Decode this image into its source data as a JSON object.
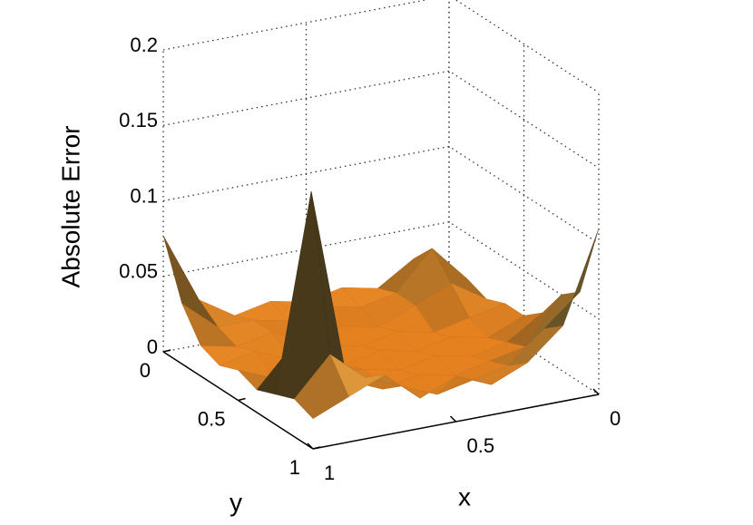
{
  "chart_data": {
    "type": "surface",
    "zlabel": "Absolute Error",
    "xlabel": "x",
    "ylabel": "y",
    "x": [
      0,
      0.125,
      0.25,
      0.375,
      0.5,
      0.625,
      0.75,
      0.875,
      1
    ],
    "y": [
      0,
      0.125,
      0.25,
      0.375,
      0.5,
      0.625,
      0.75,
      0.875,
      1
    ],
    "z": [
      [
        0.02,
        0.03,
        0.015,
        0.02,
        0.015,
        0.02,
        0.015,
        0.03,
        0.077
      ],
      [
        0.02,
        0.045,
        0.02,
        0.015,
        0.02,
        0.015,
        0.02,
        0.02,
        0.04
      ],
      [
        0.015,
        0.03,
        0.02,
        0.01,
        0.015,
        0.01,
        0.02,
        0.015,
        0.02
      ],
      [
        0.02,
        0.015,
        0.01,
        0.015,
        0.01,
        0.015,
        0.01,
        0.02,
        0.015
      ],
      [
        0.02,
        0.01,
        0.015,
        0.01,
        0.015,
        0.01,
        0.015,
        0.01,
        0.02
      ],
      [
        0.03,
        0.015,
        0.01,
        0.015,
        0.01,
        0.015,
        0.02,
        0.04,
        0.015
      ],
      [
        0.05,
        0.02,
        0.015,
        0.01,
        0.015,
        0.01,
        0.02,
        0.15,
        0.02
      ],
      [
        0.06,
        0.04,
        0.02,
        0.015,
        0.01,
        0.02,
        0.03,
        0.05,
        0.025
      ],
      [
        0.11,
        0.05,
        0.03,
        0.02,
        0.03,
        0.02,
        0.04,
        0.03,
        0.02
      ]
    ],
    "xlim": [
      0,
      1
    ],
    "xticks": [
      0,
      0.5,
      1
    ],
    "ylim": [
      0,
      1
    ],
    "yticks": [
      0,
      0.5,
      1
    ],
    "zlim": [
      0,
      0.2
    ],
    "zticks": [
      0,
      0.05,
      0.1,
      0.15,
      0.2
    ],
    "grid": true
  }
}
